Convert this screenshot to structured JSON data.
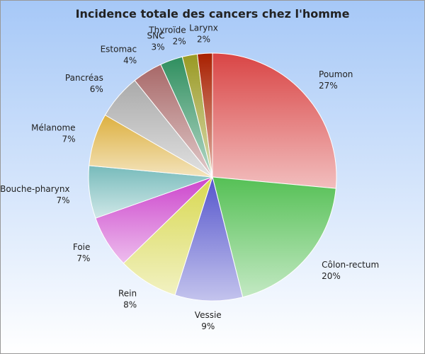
{
  "chart_data": {
    "type": "pie",
    "title": "Incidence totale des cancers chez l'homme",
    "categories": [
      "Poumon",
      "Côlon-rectum",
      "Vessie",
      "Rein",
      "Foie",
      "Bouche-pharynx",
      "Mélanome",
      "Pancréas",
      "Estomac",
      "SNC",
      "Thyroïde",
      "Larynx"
    ],
    "values": [
      27,
      20,
      9,
      8,
      7,
      7,
      7,
      6,
      4,
      3,
      2,
      2
    ],
    "value_labels": [
      "27%",
      "20%",
      "9%",
      "8%",
      "7%",
      "7%",
      "7%",
      "6%",
      "4%",
      "3%",
      "2%",
      "2%"
    ],
    "colors": [
      "#d94545",
      "#55c055",
      "#5555cc",
      "#d8d850",
      "#cc44cc",
      "#77bbbb",
      "#ddb040",
      "#aaaaaa",
      "#a86868",
      "#2f8f5f",
      "#999922",
      "#a82000"
    ]
  }
}
